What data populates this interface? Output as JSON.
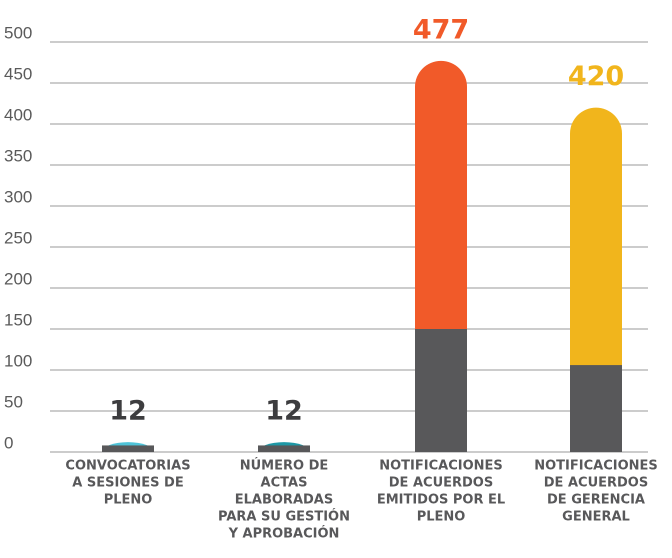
{
  "chart_data": {
    "type": "bar",
    "categories": [
      [
        "CONVOCATORIAS",
        "A SESIONES DE",
        "PLENO"
      ],
      [
        "NÚMERO DE",
        "ACTAS",
        "ELABORADAS",
        "PARA SU GESTIÓN",
        "Y APROBACIÓN"
      ],
      [
        "NOTIFICACIONES",
        "DE ACUERDOS",
        "EMITIDOS POR EL",
        "PLENO"
      ],
      [
        "NOTIFICACIONES",
        "DE ACUERDOS",
        "DE GERENCIA",
        "GENERAL"
      ]
    ],
    "values": [
      12,
      12,
      477,
      420
    ],
    "base_values": [
      8,
      8,
      150,
      106
    ],
    "colors": [
      "#4fc3d8",
      "#1e98a6",
      "#f15a29",
      "#f1b51c"
    ],
    "label_colors": [
      "#3d3d3f",
      "#3d3d3f",
      "#f15a29",
      "#f1b51c"
    ],
    "base_color": "#58585a",
    "ylim": [
      0,
      500
    ],
    "yticks": [
      0,
      50,
      100,
      150,
      200,
      250,
      300,
      350,
      400,
      450,
      500
    ],
    "grid": true
  }
}
